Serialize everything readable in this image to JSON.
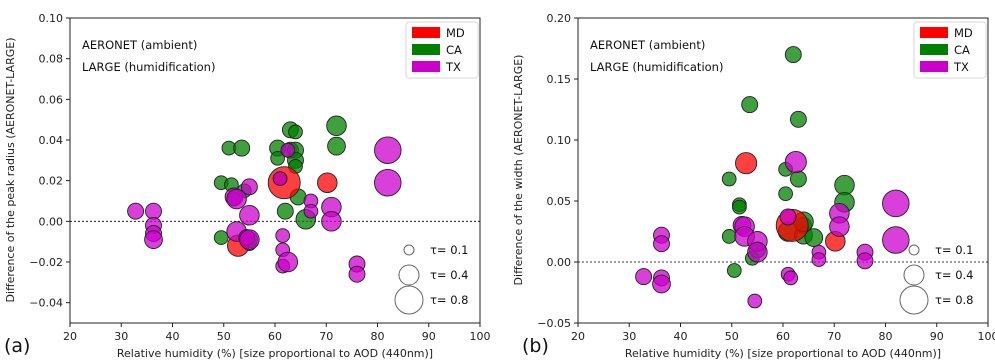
{
  "colors": {
    "MD": "#ff0000",
    "CA": "#008000",
    "TX": "#cc00cc"
  },
  "chart_data": [
    {
      "type": "scatter",
      "panel_label": "(a)",
      "annotations": [
        "AERONET (ambient)",
        "LARGE (humidification)"
      ],
      "xlabel": "Relative humidity (%)  [size proportional to AOD (440nm)]",
      "ylabel": "Difference of the peak radius (AERONET-LARGE)",
      "xlim": [
        20,
        100
      ],
      "ylim": [
        -0.05,
        0.1
      ],
      "xticks": [
        "20",
        "30",
        "40",
        "50",
        "60",
        "70",
        "80",
        "90",
        "100"
      ],
      "xtick_values": [
        20,
        30,
        40,
        50,
        60,
        70,
        80,
        90,
        100
      ],
      "yticks": [
        "−0.04",
        "−0.02",
        "0.00",
        "0.02",
        "0.04",
        "0.06",
        "0.08",
        "0.10"
      ],
      "ytick_values": [
        -0.04,
        -0.02,
        0.0,
        0.02,
        0.04,
        0.06,
        0.08,
        0.1
      ],
      "zero_line": true,
      "legend_position": "top-right",
      "legend": [
        "MD",
        "CA",
        "TX"
      ],
      "size_legend": [
        {
          "label": "τ= 0.1",
          "tau": 0.1
        },
        {
          "label": "τ= 0.4",
          "tau": 0.4
        },
        {
          "label": "τ= 0.8",
          "tau": 0.8
        }
      ],
      "series": [
        {
          "name": "CA",
          "points": [
            [
              49.5,
              0.019,
              0.15
            ],
            [
              49.5,
              -0.008,
              0.15
            ],
            [
              51.0,
              0.036,
              0.15
            ],
            [
              51.5,
              0.018,
              0.15
            ],
            [
              52.0,
              0.011,
              0.15
            ],
            [
              53.5,
              0.036,
              0.2
            ],
            [
              54.0,
              0.015,
              0.15
            ],
            [
              55.0,
              -0.011,
              0.15
            ],
            [
              60.5,
              0.036,
              0.2
            ],
            [
              60.5,
              0.031,
              0.15
            ],
            [
              61.0,
              0.021,
              0.15
            ],
            [
              62.0,
              0.005,
              0.2
            ],
            [
              63.0,
              0.045,
              0.2
            ],
            [
              63.0,
              0.035,
              0.2
            ],
            [
              64.0,
              0.044,
              0.15
            ],
            [
              64.0,
              0.035,
              0.2
            ],
            [
              64.0,
              0.03,
              0.2
            ],
            [
              64.0,
              0.027,
              0.15
            ],
            [
              64.5,
              0.012,
              0.2
            ],
            [
              66.0,
              0.001,
              0.3
            ],
            [
              72.0,
              0.047,
              0.3
            ],
            [
              72.0,
              0.037,
              0.25
            ],
            [
              55.0,
              -0.009,
              0.2
            ]
          ]
        },
        {
          "name": "MD",
          "points": [
            [
              61.8,
              0.019,
              0.8
            ],
            [
              70.2,
              0.019,
              0.3
            ],
            [
              52.8,
              -0.012,
              0.35
            ]
          ]
        },
        {
          "name": "TX",
          "points": [
            [
              32.8,
              0.005,
              0.2
            ],
            [
              36.3,
              0.005,
              0.2
            ],
            [
              36.3,
              -0.002,
              0.2
            ],
            [
              36.3,
              -0.006,
              0.2
            ],
            [
              36.3,
              -0.009,
              0.25
            ],
            [
              52.0,
              0.012,
              0.25
            ],
            [
              52.5,
              0.011,
              0.3
            ],
            [
              52.5,
              -0.005,
              0.3
            ],
            [
              54.5,
              -0.008,
              0.2
            ],
            [
              55.0,
              0.003,
              0.3
            ],
            [
              55.0,
              -0.009,
              0.3
            ],
            [
              55.0,
              0.017,
              0.2
            ],
            [
              61.0,
              0.021,
              0.15
            ],
            [
              61.5,
              -0.007,
              0.15
            ],
            [
              61.5,
              -0.014,
              0.15
            ],
            [
              61.5,
              -0.022,
              0.15
            ],
            [
              62.5,
              -0.02,
              0.3
            ],
            [
              67.0,
              0.01,
              0.15
            ],
            [
              67.0,
              0.005,
              0.15
            ],
            [
              71.0,
              0.007,
              0.3
            ],
            [
              71.0,
              0.0,
              0.3
            ],
            [
              76.0,
              -0.021,
              0.2
            ],
            [
              76.0,
              -0.026,
              0.2
            ],
            [
              82.0,
              0.035,
              0.55
            ],
            [
              82.0,
              0.019,
              0.55
            ],
            [
              62.5,
              0.035,
              0.15
            ]
          ]
        }
      ]
    },
    {
      "type": "scatter",
      "panel_label": "(b)",
      "annotations": [
        "AERONET (ambient)",
        "LARGE (humidification)"
      ],
      "xlabel": "Relative humidity (%)  [size proportional to AOD (440nm)]",
      "ylabel": "Difference of the width (AERONET-LARGE)",
      "xlim": [
        20,
        100
      ],
      "ylim": [
        -0.05,
        0.2
      ],
      "xticks": [
        "20",
        "30",
        "40",
        "50",
        "60",
        "70",
        "80",
        "90",
        "100"
      ],
      "xtick_values": [
        20,
        30,
        40,
        50,
        60,
        70,
        80,
        90,
        100
      ],
      "yticks": [
        "−0.05",
        "0.00",
        "0.05",
        "0.10",
        "0.15",
        "0.20"
      ],
      "ytick_values": [
        -0.05,
        0.0,
        0.05,
        0.1,
        0.15,
        0.2
      ],
      "zero_line": true,
      "legend_position": "top-right",
      "legend": [
        "MD",
        "CA",
        "TX"
      ],
      "size_legend": [
        {
          "label": "τ= 0.1",
          "tau": 0.1
        },
        {
          "label": "τ= 0.4",
          "tau": 0.4
        },
        {
          "label": "τ= 0.8",
          "tau": 0.8
        }
      ],
      "series": [
        {
          "name": "CA",
          "points": [
            [
              49.5,
              0.068,
              0.15
            ],
            [
              49.5,
              0.021,
              0.15
            ],
            [
              50.5,
              -0.007,
              0.15
            ],
            [
              51.5,
              0.047,
              0.15
            ],
            [
              51.5,
              0.045,
              0.15
            ],
            [
              53.5,
              0.129,
              0.2
            ],
            [
              54.0,
              0.003,
              0.15
            ],
            [
              55.0,
              0.01,
              0.2
            ],
            [
              60.5,
              0.076,
              0.15
            ],
            [
              60.5,
              0.056,
              0.15
            ],
            [
              61.0,
              0.025,
              0.3
            ],
            [
              62.0,
              0.17,
              0.2
            ],
            [
              63.0,
              0.117,
              0.2
            ],
            [
              63.0,
              0.068,
              0.2
            ],
            [
              64.0,
              0.03,
              0.2
            ],
            [
              64.0,
              0.022,
              0.25
            ],
            [
              64.0,
              0.033,
              0.3
            ],
            [
              66.0,
              0.02,
              0.25
            ],
            [
              72.0,
              0.063,
              0.3
            ],
            [
              72.0,
              0.049,
              0.3
            ]
          ]
        },
        {
          "name": "MD",
          "points": [
            [
              61.8,
              0.03,
              0.8
            ],
            [
              70.2,
              0.017,
              0.3
            ],
            [
              52.8,
              0.081,
              0.35
            ]
          ]
        },
        {
          "name": "TX",
          "points": [
            [
              32.8,
              -0.012,
              0.2
            ],
            [
              36.3,
              0.022,
              0.2
            ],
            [
              36.3,
              0.015,
              0.2
            ],
            [
              36.3,
              -0.013,
              0.2
            ],
            [
              36.3,
              -0.018,
              0.25
            ],
            [
              52.0,
              0.03,
              0.25
            ],
            [
              52.5,
              0.029,
              0.3
            ],
            [
              52.5,
              0.021,
              0.3
            ],
            [
              54.5,
              -0.032,
              0.15
            ],
            [
              55.0,
              0.017,
              0.3
            ],
            [
              55.0,
              0.008,
              0.3
            ],
            [
              61.0,
              -0.01,
              0.15
            ],
            [
              61.5,
              -0.013,
              0.15
            ],
            [
              61.0,
              0.037,
              0.2
            ],
            [
              62.5,
              0.082,
              0.35
            ],
            [
              67.0,
              0.008,
              0.15
            ],
            [
              67.0,
              0.002,
              0.15
            ],
            [
              71.0,
              0.04,
              0.3
            ],
            [
              71.0,
              0.029,
              0.3
            ],
            [
              76.0,
              0.008,
              0.2
            ],
            [
              76.0,
              0.001,
              0.2
            ],
            [
              82.0,
              0.048,
              0.55
            ],
            [
              82.0,
              0.018,
              0.55
            ]
          ]
        }
      ]
    }
  ]
}
